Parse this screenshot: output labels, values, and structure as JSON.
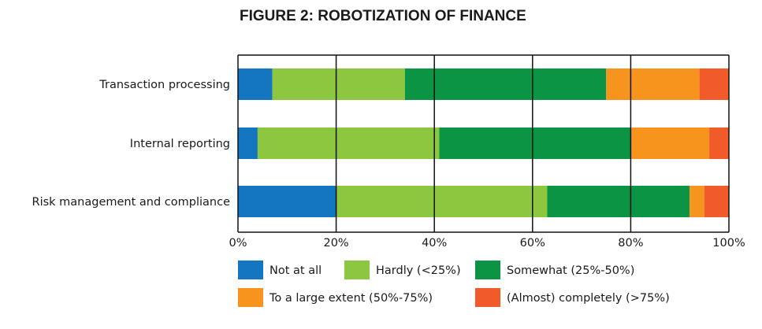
{
  "chart_data": {
    "type": "bar",
    "orientation": "horizontal",
    "stacked": true,
    "title": "FIGURE 2: ROBOTIZATION OF FINANCE",
    "categories": [
      "Transaction processing",
      "Internal reporting",
      "Risk management and compliance"
    ],
    "series": [
      {
        "name": "Not at all",
        "color": "#1475c1",
        "values": [
          7,
          4,
          20
        ]
      },
      {
        "name": "Hardly (<25%)",
        "color": "#8dc63f",
        "values": [
          27,
          37,
          43
        ]
      },
      {
        "name": "Somewhat (25%-50%)",
        "color": "#0b9444",
        "values": [
          41,
          39,
          29
        ]
      },
      {
        "name": "To a large extent (50%-75%)",
        "color": "#f7941d",
        "values": [
          19,
          16,
          3
        ]
      },
      {
        "name": "(Almost) completely (>75%)",
        "color": "#f15a29",
        "values": [
          6,
          4,
          5
        ]
      }
    ],
    "xlim": [
      0,
      100
    ],
    "ticks": [
      0,
      20,
      40,
      60,
      80,
      100
    ],
    "tick_labels": [
      "0%",
      "20%",
      "40%",
      "60%",
      "80%",
      "100%"
    ],
    "grid": true,
    "legend_position": "bottom"
  }
}
